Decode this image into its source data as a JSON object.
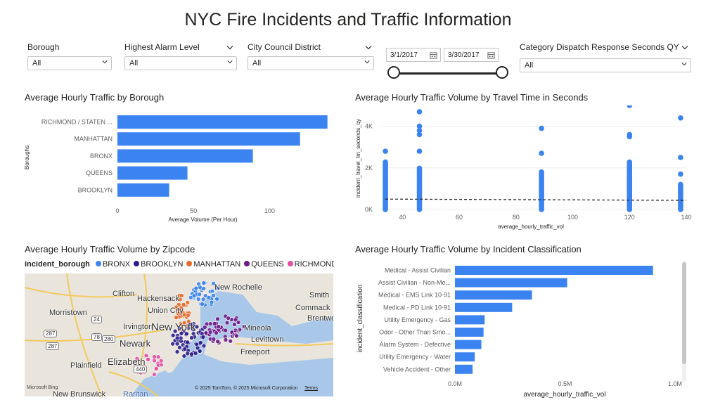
{
  "report_title": "NYC Fire Incidents and Traffic Information",
  "filters": {
    "borough": {
      "label": "Borough",
      "value": "All"
    },
    "alarm": {
      "label": "Highest Alarm Level",
      "value": "All"
    },
    "council": {
      "label": "City Council District",
      "value": "All"
    },
    "date_start": "3/1/2017",
    "date_end": "3/30/2017",
    "dispatch": {
      "label": "Category Dispatch Response Seconds QY",
      "value": "All"
    }
  },
  "colors": {
    "accent": "#3b83f0",
    "bronx": "#3b83f0",
    "brooklyn": "#2c1e8c",
    "manhattan": "#e86a2a",
    "queens": "#6a1b8a",
    "richmond": "#e54fa3"
  },
  "chart_data": [
    {
      "type": "bar",
      "title": "Average Hourly Traffic by Borough",
      "categories": [
        "RICHMOND / STATEN ...",
        "MANHATTAN",
        "BRONX",
        "QUEENS",
        "BROOKLYN"
      ],
      "values": [
        138,
        120,
        89,
        46,
        34
      ],
      "xlabel": "Average Volume (Per Hour)",
      "ylabel": "Boroughs",
      "xticks": [
        "0",
        "50",
        "100"
      ],
      "xlim": [
        0,
        140
      ]
    },
    {
      "type": "scatter",
      "title": "Average Hourly Traffic Volume by Travel Time in Seconds",
      "xlabel": "average_hourly_traffic_vol",
      "ylabel": "incident_travel_tm_seconds_qy",
      "xticks": [
        "40",
        "60",
        "80",
        "100",
        "120",
        "140"
      ],
      "yticks": [
        "0K",
        "2K",
        "4K"
      ],
      "xlim": [
        32,
        140
      ],
      "ylim": [
        0,
        5000
      ],
      "columns": [
        {
          "x": 34,
          "ymax": 2300,
          "outliers": [
            2800
          ]
        },
        {
          "x": 46,
          "ymax": 2000,
          "outliers": [
            2800,
            3600,
            3800,
            4000,
            4700
          ]
        },
        {
          "x": 89,
          "ymax": 1800,
          "outliers": [
            2700,
            3900
          ]
        },
        {
          "x": 120,
          "ymax": 2300,
          "outliers": [
            3500,
            3600,
            5000
          ]
        },
        {
          "x": 138,
          "ymax": 1200,
          "outliers": [
            1700,
            2500,
            4400
          ]
        }
      ],
      "trend_y": 500
    },
    {
      "type": "bar",
      "title": "Average Hourly Traffic Volume by Incident Classification",
      "categories": [
        "Medical - Assist Civilian",
        "Assist Civilian - Non-Me...",
        "Medical - EMS Link 10-91",
        "Medical - PD Link 10-91",
        "Utility Emergency - Gas",
        "Odor - Other Than Smo...",
        "Alarm System - Defective",
        "Utility Emergency - Water",
        "Vehicle Accident - Other"
      ],
      "values": [
        900000,
        510000,
        350000,
        260000,
        135000,
        130000,
        120000,
        90000,
        80000
      ],
      "xlabel": "average_hourly_traffic_vol",
      "ylabel": "incident_classification",
      "xticks": [
        "0.0M",
        "0.5M",
        "1.0M"
      ],
      "xlim": [
        0,
        1000000
      ]
    }
  ],
  "map": {
    "title": "Average Hourly Traffic Volume by Zipcode",
    "legend_title": "incident_borough",
    "legend": [
      {
        "name": "BRONX",
        "color": "#3b83f0"
      },
      {
        "name": "BROOKLYN",
        "color": "#2c1e8c"
      },
      {
        "name": "MANHATTAN",
        "color": "#e86a2a"
      },
      {
        "name": "QUEENS",
        "color": "#6a1b8a"
      },
      {
        "name": "RICHMOND / ST...",
        "color": "#e54fa3"
      }
    ],
    "places": [
      "Clifton",
      "Hackensack",
      "New Rochelle",
      "Smith",
      "Morristown",
      "Union City",
      "Commack",
      "Brentwo",
      "Irvington",
      "New York",
      "Mineola",
      "Newark",
      "Levittown",
      "Freeport",
      "Elizabeth",
      "Plainfield",
      "New Brunswick",
      "Raritan"
    ],
    "shields": [
      "287",
      "24",
      "78",
      "280",
      "287",
      "440"
    ],
    "attribution": "© 2025 TomTom, © 2025 Microsoft Corporation",
    "terms": "Terms",
    "logo": "Microsoft Bing"
  }
}
